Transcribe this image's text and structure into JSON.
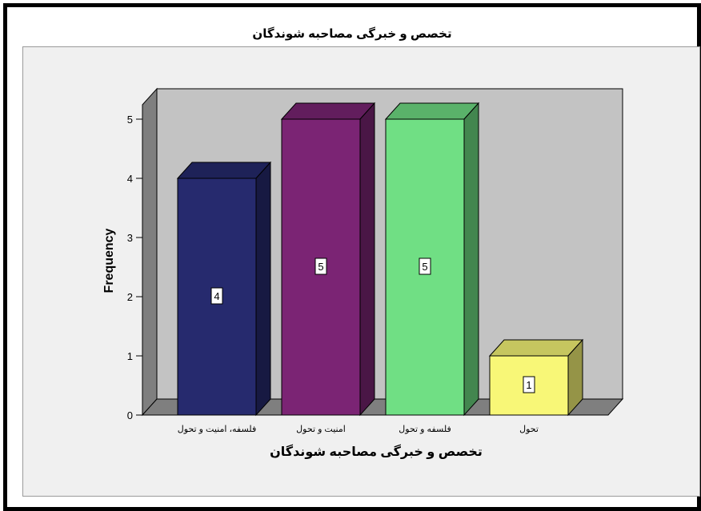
{
  "chart_data": {
    "type": "bar",
    "title": "تخصص و خبرگی مصاحبه شوندگان",
    "xlabel": "تخصص و خبرگی مصاحبه شوندگان",
    "ylabel": "Frequency",
    "categories": [
      "فلسفه، امنیت و تحول",
      "امنیت و تحول",
      "فلسفه و تحول",
      "تحول"
    ],
    "values": [
      4,
      5,
      5,
      1
    ],
    "data_labels": [
      "4",
      "5",
      "5",
      "1"
    ],
    "bar_colors": [
      "#262a6e",
      "#7b2474",
      "#70df84",
      "#f8f777"
    ],
    "ylim": [
      0,
      5
    ],
    "yticks": [
      "0",
      "1",
      "2",
      "3",
      "4",
      "5"
    ],
    "grid": false,
    "style": "3d"
  }
}
